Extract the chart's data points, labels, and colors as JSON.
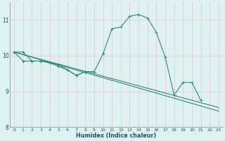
{
  "xlabel": "Humidex (Indice chaleur)",
  "x_values": [
    0,
    1,
    2,
    3,
    4,
    5,
    6,
    7,
    8,
    9,
    10,
    11,
    12,
    13,
    14,
    15,
    16,
    17,
    18,
    19,
    20,
    21,
    22,
    23
  ],
  "line_main": [
    10.1,
    10.1,
    9.85,
    9.85,
    9.8,
    9.75,
    9.6,
    9.45,
    9.55,
    9.55,
    10.05,
    10.75,
    10.8,
    11.1,
    11.15,
    11.05,
    10.65,
    9.95,
    8.9,
    9.25,
    9.25,
    8.75,
    null,
    null
  ],
  "line_short": [
    10.1,
    9.85,
    9.85,
    9.85,
    9.8,
    9.7,
    9.6,
    9.45,
    9.55,
    9.55,
    null,
    null,
    null,
    null,
    null,
    null,
    null,
    null,
    null,
    null,
    null,
    null,
    null,
    null
  ],
  "line_diag1": [
    10.1,
    23,
    8.45
  ],
  "line_diag2": [
    10.1,
    23,
    8.55
  ],
  "ylim": [
    8.0,
    11.5
  ],
  "yticks": [
    8,
    9,
    10,
    11
  ],
  "xticks": [
    0,
    1,
    2,
    3,
    4,
    5,
    6,
    7,
    8,
    9,
    10,
    11,
    12,
    13,
    14,
    15,
    16,
    17,
    18,
    19,
    20,
    21,
    22,
    23
  ],
  "line_color": "#2e8b7a",
  "bg_color": "#dff2f2",
  "grid_color": "#f0c8c8",
  "axis_color": "#888888"
}
